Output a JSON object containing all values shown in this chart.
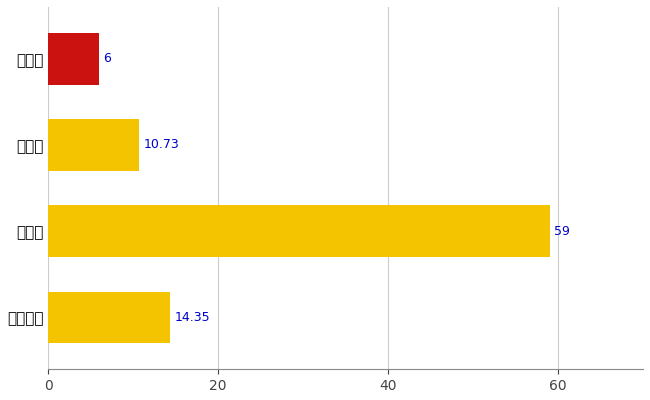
{
  "categories": [
    "全国平均",
    "県最大",
    "県平均",
    "矢幺町"
  ],
  "values": [
    14.35,
    59,
    10.73,
    6
  ],
  "bar_colors": [
    "#F5C400",
    "#F5C400",
    "#F5C400",
    "#CC1111"
  ],
  "value_labels": [
    "14.35",
    "59",
    "10.73",
    "6"
  ],
  "xlim": [
    0,
    70
  ],
  "xticks": [
    0,
    20,
    40,
    60
  ],
  "background_color": "#FFFFFF",
  "grid_color": "#CCCCCC",
  "label_color": "#0000CC",
  "figsize": [
    6.5,
    4.0
  ],
  "dpi": 100,
  "bar_height": 0.6
}
